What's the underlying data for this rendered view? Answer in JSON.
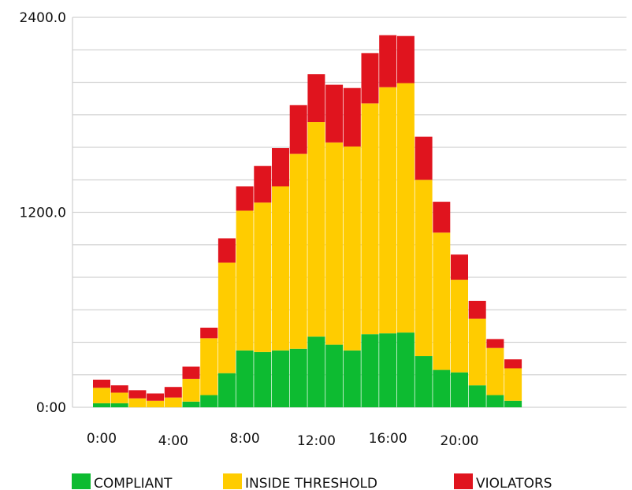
{
  "chart_data": {
    "type": "bar",
    "stacked": true,
    "categories": [
      "0:00",
      "1:00",
      "2:00",
      "3:00",
      "4:00",
      "5:00",
      "6:00",
      "7:00",
      "8:00",
      "9:00",
      "10:00",
      "11:00",
      "12:00",
      "13:00",
      "14:00",
      "15:00",
      "16:00",
      "17:00",
      "18:00",
      "19:00",
      "20:00",
      "21:00",
      "22:00",
      "23:00"
    ],
    "x_tick_labels": [
      {
        "index": 0,
        "label": "0:00"
      },
      {
        "index": 4,
        "label": "4:00"
      },
      {
        "index": 8,
        "label": "8:00"
      },
      {
        "index": 12,
        "label": "12:00"
      },
      {
        "index": 16,
        "label": "16:00"
      },
      {
        "index": 20,
        "label": "20:00"
      }
    ],
    "y_tick_labels": [
      {
        "value": 0,
        "label": "0:00"
      },
      {
        "value": 1200,
        "label": "1200.0"
      },
      {
        "value": 2400,
        "label": "2400.0"
      }
    ],
    "ylim": [
      0,
      2400
    ],
    "grid": true,
    "legend_position": "bottom",
    "series": [
      {
        "name": "COMPLIANT",
        "color": "#0dbb31",
        "values": [
          25,
          25,
          0,
          0,
          0,
          35,
          75,
          210,
          350,
          340,
          350,
          360,
          435,
          385,
          350,
          450,
          455,
          460,
          315,
          230,
          215,
          135,
          75,
          40
        ]
      },
      {
        "name": "INSIDE THRESHOLD",
        "color": "#ffcc00",
        "values": [
          95,
          65,
          55,
          40,
          60,
          140,
          350,
          680,
          860,
          920,
          1010,
          1200,
          1320,
          1245,
          1255,
          1420,
          1515,
          1535,
          1085,
          845,
          570,
          410,
          290,
          200
        ]
      },
      {
        "name": "VIOLATORS",
        "color": "#e0141e",
        "values": [
          50,
          45,
          50,
          45,
          65,
          75,
          65,
          150,
          150,
          225,
          235,
          300,
          295,
          355,
          360,
          310,
          320,
          290,
          265,
          190,
          155,
          110,
          55,
          55
        ]
      }
    ]
  }
}
